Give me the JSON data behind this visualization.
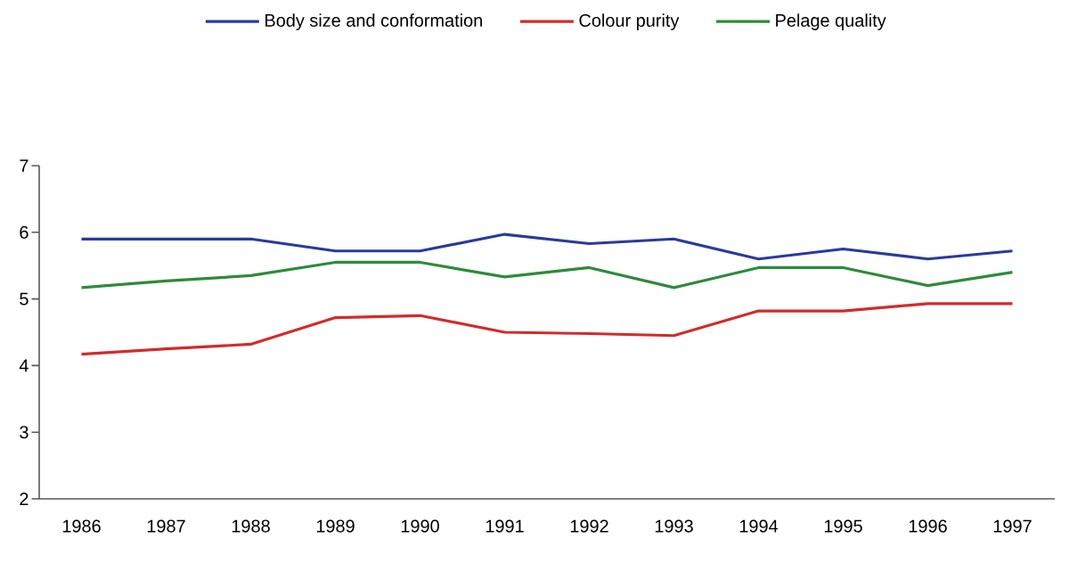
{
  "chart_data": {
    "type": "line",
    "categories": [
      "1986",
      "1987",
      "1988",
      "1989",
      "1990",
      "1991",
      "1992",
      "1993",
      "1994",
      "1995",
      "1996",
      "1997"
    ],
    "series": [
      {
        "name": "Body size and conformation",
        "color": "#2a3a9c",
        "values": [
          5.9,
          5.9,
          5.9,
          5.72,
          5.72,
          5.97,
          5.83,
          5.9,
          5.6,
          5.75,
          5.6,
          5.72
        ]
      },
      {
        "name": "Colour purity",
        "color": "#d42a2a",
        "values": [
          4.17,
          4.25,
          4.32,
          4.72,
          4.75,
          4.5,
          4.48,
          4.45,
          4.82,
          4.82,
          4.93,
          4.93
        ]
      },
      {
        "name": "Pelage quality",
        "color": "#2e8b3a",
        "values": [
          5.17,
          5.27,
          5.35,
          5.55,
          5.55,
          5.33,
          5.47,
          5.17,
          5.47,
          5.47,
          5.2,
          5.4
        ]
      }
    ],
    "ylim": [
      2,
      7
    ],
    "yticks": [
      2,
      3,
      4,
      5,
      6,
      7
    ],
    "grid": false,
    "legend": "top",
    "marker": "none",
    "line_style": "solid"
  }
}
